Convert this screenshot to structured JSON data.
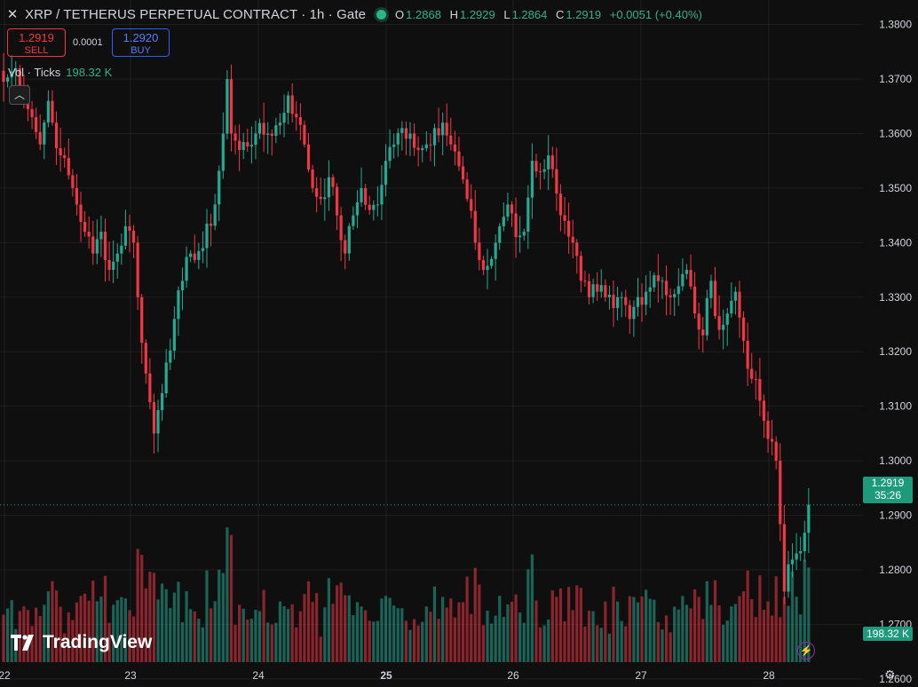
{
  "header": {
    "close_icon": "x-icon",
    "title": "XRP / TETHERUS PERPETUAL CONTRACT · 1h · Gate",
    "status_color": "#2bb389",
    "ohlc": {
      "o_label": "O",
      "o": "1.2868",
      "h_label": "H",
      "h": "1.2929",
      "l_label": "L",
      "l": "1.2864",
      "c_label": "C",
      "c": "1.2919",
      "change": "+0.0051 (+0.40%)"
    }
  },
  "trade": {
    "sell_price": "1.2919",
    "sell_label": "SELL",
    "spread": "0.0001",
    "buy_price": "1.2920",
    "buy_label": "BUY"
  },
  "volume_legend": {
    "label": "Vol · Ticks",
    "value": "198.32 K"
  },
  "price_label": {
    "price": "1.2919",
    "countdown": "35:26"
  },
  "volume_label": "198.32 K",
  "logo_text": "TradingView",
  "colors": {
    "up": "#22ab94",
    "down": "#f23645",
    "background": "#0f0f0f"
  },
  "chart_data": {
    "type": "candlestick",
    "title": "XRP / TETHERUS PERPETUAL CONTRACT · 1h · Gate",
    "x_ticks": [
      "22",
      "23",
      "24",
      "25",
      "26",
      "27",
      "28"
    ],
    "y_ticks": [
      "1.3800",
      "1.3700",
      "1.3600",
      "1.3500",
      "1.3400",
      "1.3300",
      "1.3200",
      "1.3100",
      "1.3000",
      "1.2900",
      "1.2800",
      "1.2700",
      "1.2600"
    ],
    "ylim": [
      1.2585,
      1.3845
    ],
    "grid": true,
    "last_price": 1.2919,
    "waypoints": [
      [
        0,
        1.3695
      ],
      [
        3,
        1.372
      ],
      [
        5,
        1.368
      ],
      [
        7,
        1.363
      ],
      [
        9,
        1.358
      ],
      [
        11,
        1.366
      ],
      [
        12,
        1.362
      ],
      [
        14,
        1.356
      ],
      [
        17,
        1.35
      ],
      [
        20,
        1.342
      ],
      [
        22,
        1.338
      ],
      [
        24,
        1.342
      ],
      [
        26,
        1.335
      ],
      [
        28,
        1.338
      ],
      [
        30,
        1.343
      ],
      [
        32,
        1.34
      ],
      [
        33,
        1.33
      ],
      [
        35,
        1.316
      ],
      [
        37,
        1.305
      ],
      [
        40,
        1.318
      ],
      [
        42,
        1.326
      ],
      [
        44,
        1.333
      ],
      [
        46,
        1.338
      ],
      [
        49,
        1.339
      ],
      [
        52,
        1.347
      ],
      [
        54,
        1.36
      ],
      [
        55,
        1.37
      ],
      [
        56,
        1.36
      ],
      [
        58,
        1.357
      ],
      [
        62,
        1.36
      ],
      [
        65,
        1.36
      ],
      [
        68,
        1.362
      ],
      [
        70,
        1.367
      ],
      [
        72,
        1.363
      ],
      [
        74,
        1.358
      ],
      [
        76,
        1.35
      ],
      [
        78,
        1.348
      ],
      [
        80,
        1.352
      ],
      [
        82,
        1.345
      ],
      [
        84,
        1.338
      ],
      [
        86,
        1.345
      ],
      [
        88,
        1.35
      ],
      [
        90,
        1.346
      ],
      [
        92,
        1.347
      ],
      [
        94,
        1.355
      ],
      [
        96,
        1.358
      ],
      [
        98,
        1.361
      ],
      [
        100,
        1.36
      ],
      [
        102,
        1.357
      ],
      [
        104,
        1.358
      ],
      [
        106,
        1.361
      ],
      [
        108,
        1.362
      ],
      [
        110,
        1.358
      ],
      [
        112,
        1.354
      ],
      [
        114,
        1.348
      ],
      [
        116,
        1.34
      ],
      [
        118,
        1.335
      ],
      [
        120,
        1.337
      ],
      [
        122,
        1.343
      ],
      [
        124,
        1.347
      ],
      [
        126,
        1.341
      ],
      [
        128,
        1.342
      ],
      [
        130,
        1.355
      ],
      [
        132,
        1.353
      ],
      [
        134,
        1.356
      ],
      [
        136,
        1.349
      ],
      [
        138,
        1.344
      ],
      [
        140,
        1.34
      ],
      [
        142,
        1.333
      ],
      [
        144,
        1.33
      ],
      [
        146,
        1.331
      ],
      [
        148,
        1.33
      ],
      [
        150,
        1.328
      ],
      [
        152,
        1.33
      ],
      [
        154,
        1.326
      ],
      [
        156,
        1.33
      ],
      [
        158,
        1.331
      ],
      [
        160,
        1.334
      ],
      [
        162,
        1.333
      ],
      [
        164,
        1.33
      ],
      [
        166,
        1.332
      ],
      [
        168,
        1.335
      ],
      [
        170,
        1.327
      ],
      [
        172,
        1.323
      ],
      [
        174,
        1.333
      ],
      [
        176,
        1.324
      ],
      [
        178,
        1.327
      ],
      [
        180,
        1.331
      ],
      [
        182,
        1.322
      ],
      [
        184,
        1.315
      ],
      [
        186,
        1.311
      ],
      [
        188,
        1.304
      ],
      [
        190,
        1.3
      ],
      [
        192,
        1.276
      ],
      [
        193,
        1.281
      ],
      [
        195,
        1.283
      ],
      [
        197,
        1.2868
      ],
      [
        198,
        1.2919
      ]
    ],
    "volume_ylim": [
      0,
      200
    ],
    "volume_last": "198.32 K"
  }
}
